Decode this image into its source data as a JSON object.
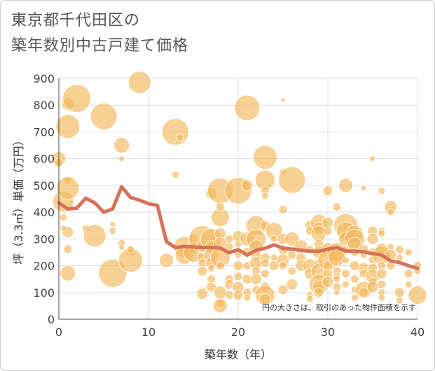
{
  "page": {
    "title_line1": "東京都千代田区の",
    "title_line2": "築年数別中古戸建て価格"
  },
  "chart_data": {
    "type": "scatter",
    "title": "東京都千代田区の築年数別中古戸建て価格",
    "xlabel": "築年数（年）",
    "ylabel": "坪（3.3㎡）単価（万円）",
    "xlim": [
      0,
      40
    ],
    "ylim": [
      0,
      900
    ],
    "xticks": [
      0,
      10,
      20,
      30,
      40
    ],
    "yticks": [
      0,
      100,
      200,
      300,
      400,
      500,
      600,
      700,
      800,
      900
    ],
    "grid": true,
    "note": "円の大きさは、取引のあった物件面積を示す",
    "colors": {
      "bubble": "#f3b95a",
      "bubble_opacity": 0.65,
      "line": "#d5735a",
      "grid": "#d8dde6",
      "axis": "#444444"
    },
    "series": [
      {
        "type": "line",
        "x": [
          0,
          1,
          2,
          3,
          4,
          5,
          6,
          7,
          8,
          9,
          10,
          11,
          12,
          13,
          14,
          15,
          16,
          17,
          18,
          19,
          20,
          21,
          22,
          23,
          24,
          25,
          26,
          27,
          28,
          29,
          30,
          31,
          32,
          33,
          34,
          35,
          36,
          37,
          38,
          39,
          40
        ],
        "y": [
          435,
          412,
          415,
          452,
          435,
          400,
          412,
          495,
          455,
          445,
          432,
          425,
          290,
          268,
          272,
          270,
          268,
          268,
          266,
          248,
          260,
          240,
          258,
          265,
          278,
          265,
          262,
          258,
          254,
          254,
          262,
          268,
          255,
          254,
          252,
          245,
          240,
          218,
          212,
          200,
          190
        ]
      },
      {
        "type": "bubble",
        "points": [
          [
            0,
            600,
            20
          ],
          [
            0,
            585,
            12
          ],
          [
            0.5,
            440,
            30
          ],
          [
            1,
            720,
            34
          ],
          [
            1,
            805,
            18
          ],
          [
            1,
            520,
            12
          ],
          [
            1,
            490,
            32
          ],
          [
            1,
            325,
            16
          ],
          [
            1,
            262,
            12
          ],
          [
            1,
            172,
            22
          ],
          [
            0.5,
            380,
            10
          ],
          [
            0.5,
            340,
            9
          ],
          [
            2,
            825,
            40
          ],
          [
            3,
            340,
            10
          ],
          [
            4,
            312,
            32
          ],
          [
            5,
            758,
            38
          ],
          [
            6,
            355,
            8
          ],
          [
            6,
            330,
            10
          ],
          [
            6,
            172,
            40
          ],
          [
            7,
            650,
            22
          ],
          [
            7,
            600,
            8
          ],
          [
            7,
            285,
            10
          ],
          [
            7,
            268,
            8
          ],
          [
            8,
            255,
            14
          ],
          [
            8,
            220,
            34
          ],
          [
            8,
            260,
            10
          ],
          [
            9,
            885,
            32
          ],
          [
            12,
            220,
            20
          ],
          [
            12,
            300,
            8
          ],
          [
            13,
            700,
            38
          ],
          [
            13,
            540,
            10
          ],
          [
            13.5,
            680,
            10
          ],
          [
            14,
            270,
            30
          ],
          [
            14,
            240,
            26
          ],
          [
            15,
            300,
            14
          ],
          [
            15,
            260,
            12
          ],
          [
            15,
            250,
            28
          ],
          [
            16,
            300,
            38
          ],
          [
            16,
            275,
            16
          ],
          [
            16,
            230,
            14
          ],
          [
            16,
            210,
            12
          ],
          [
            16,
            180,
            14
          ],
          [
            16,
            95,
            16
          ],
          [
            17,
            300,
            30
          ],
          [
            17,
            270,
            18
          ],
          [
            17,
            240,
            20
          ],
          [
            17,
            210,
            16
          ],
          [
            17,
            150,
            12
          ],
          [
            17,
            120,
            14
          ],
          [
            17,
            470,
            16
          ],
          [
            17,
            190,
            10
          ],
          [
            18,
            480,
            36
          ],
          [
            18,
            380,
            26
          ],
          [
            18,
            420,
            12
          ],
          [
            18,
            320,
            16
          ],
          [
            18,
            280,
            20
          ],
          [
            18,
            230,
            28
          ],
          [
            18,
            200,
            12
          ],
          [
            18,
            100,
            18
          ],
          [
            18,
            60,
            12
          ],
          [
            18,
            50,
            20
          ],
          [
            19,
            150,
            12
          ],
          [
            19,
            130,
            14
          ],
          [
            19,
            90,
            12
          ],
          [
            19,
            270,
            12
          ],
          [
            19,
            300,
            12
          ],
          [
            20,
            480,
            38
          ],
          [
            20,
            310,
            16
          ],
          [
            20,
            280,
            10
          ],
          [
            20,
            240,
            10
          ],
          [
            20,
            200,
            14
          ],
          [
            20,
            160,
            12
          ],
          [
            20,
            120,
            16
          ],
          [
            20,
            90,
            14
          ],
          [
            21,
            790,
            36
          ],
          [
            21,
            500,
            16
          ],
          [
            21,
            300,
            20
          ],
          [
            21,
            250,
            14
          ],
          [
            21,
            200,
            12
          ],
          [
            21,
            150,
            14
          ],
          [
            21,
            100,
            12
          ],
          [
            21,
            80,
            10
          ],
          [
            22,
            350,
            28
          ],
          [
            22,
            300,
            28
          ],
          [
            22,
            270,
            20
          ],
          [
            22,
            240,
            14
          ],
          [
            22,
            210,
            18
          ],
          [
            22,
            180,
            12
          ],
          [
            22,
            150,
            16
          ],
          [
            22,
            110,
            12
          ],
          [
            23,
            605,
            34
          ],
          [
            23,
            520,
            28
          ],
          [
            23,
            480,
            12
          ],
          [
            23,
            460,
            10
          ],
          [
            23,
            350,
            14
          ],
          [
            23,
            230,
            14
          ],
          [
            23,
            210,
            12
          ],
          [
            23,
            170,
            12
          ],
          [
            23,
            120,
            14
          ],
          [
            23,
            90,
            28
          ],
          [
            23,
            75,
            16
          ],
          [
            24,
            330,
            24
          ],
          [
            24,
            300,
            10
          ],
          [
            24,
            230,
            10
          ],
          [
            24,
            200,
            14
          ],
          [
            25,
            820,
            6
          ],
          [
            25,
            550,
            10
          ],
          [
            25,
            410,
            12
          ],
          [
            25,
            300,
            16
          ],
          [
            25,
            260,
            14
          ],
          [
            25,
            220,
            18
          ],
          [
            25,
            200,
            12
          ],
          [
            25,
            110,
            14
          ],
          [
            26,
            520,
            38
          ],
          [
            26,
            300,
            20
          ],
          [
            26,
            240,
            12
          ],
          [
            26,
            180,
            12
          ],
          [
            26,
            130,
            16
          ],
          [
            27,
            270,
            20
          ],
          [
            27,
            230,
            14
          ],
          [
            27,
            200,
            16
          ],
          [
            28,
            350,
            14
          ],
          [
            28,
            330,
            12
          ],
          [
            28,
            260,
            12
          ],
          [
            28,
            200,
            20
          ],
          [
            28,
            170,
            16
          ],
          [
            28,
            90,
            10
          ],
          [
            28,
            75,
            10
          ],
          [
            29,
            360,
            24
          ],
          [
            29,
            340,
            18
          ],
          [
            29,
            320,
            22
          ],
          [
            29,
            280,
            14
          ],
          [
            29,
            250,
            18
          ],
          [
            29,
            210,
            12
          ],
          [
            29,
            180,
            22
          ],
          [
            29,
            130,
            28
          ],
          [
            29,
            120,
            18
          ],
          [
            29,
            100,
            14
          ],
          [
            30,
            480,
            14
          ],
          [
            30,
            360,
            16
          ],
          [
            30,
            330,
            12
          ],
          [
            30,
            260,
            20
          ],
          [
            30,
            220,
            28
          ],
          [
            30,
            200,
            14
          ],
          [
            30,
            170,
            14
          ],
          [
            30,
            140,
            16
          ],
          [
            31,
            420,
            12
          ],
          [
            31,
            250,
            28
          ],
          [
            31,
            230,
            24
          ],
          [
            31,
            180,
            12
          ],
          [
            31,
            160,
            10
          ],
          [
            31,
            150,
            10
          ],
          [
            31,
            120,
            12
          ],
          [
            31,
            100,
            8
          ],
          [
            32,
            500,
            20
          ],
          [
            32,
            350,
            34
          ],
          [
            32,
            330,
            26
          ],
          [
            32,
            300,
            20
          ],
          [
            32,
            260,
            12
          ],
          [
            32,
            220,
            10
          ],
          [
            32,
            170,
            12
          ],
          [
            32,
            130,
            10
          ],
          [
            33,
            320,
            24
          ],
          [
            33,
            300,
            28
          ],
          [
            33,
            280,
            20
          ],
          [
            33,
            250,
            12
          ],
          [
            33,
            200,
            14
          ],
          [
            33,
            150,
            12
          ],
          [
            33,
            110,
            10
          ],
          [
            33,
            80,
            10
          ],
          [
            34,
            490,
            8
          ],
          [
            34,
            260,
            14
          ],
          [
            34,
            240,
            10
          ],
          [
            34,
            190,
            16
          ],
          [
            34,
            170,
            12
          ],
          [
            34,
            110,
            24
          ],
          [
            34,
            100,
            14
          ],
          [
            35,
            600,
            8
          ],
          [
            35,
            330,
            14
          ],
          [
            35,
            300,
            16
          ],
          [
            35,
            250,
            12
          ],
          [
            35,
            220,
            12
          ],
          [
            35,
            190,
            14
          ],
          [
            35,
            160,
            20
          ],
          [
            35,
            140,
            12
          ],
          [
            35,
            120,
            16
          ],
          [
            36,
            480,
            10
          ],
          [
            36,
            330,
            10
          ],
          [
            36,
            320,
            10
          ],
          [
            36,
            260,
            18
          ],
          [
            36,
            240,
            26
          ],
          [
            36,
            200,
            12
          ],
          [
            36,
            170,
            14
          ],
          [
            36,
            130,
            12
          ],
          [
            36,
            100,
            10
          ],
          [
            36,
            80,
            10
          ],
          [
            37,
            420,
            18
          ],
          [
            37,
            400,
            10
          ],
          [
            37,
            270,
            10
          ],
          [
            37,
            240,
            16
          ],
          [
            37,
            200,
            12
          ],
          [
            38,
            260,
            12
          ],
          [
            38,
            230,
            10
          ],
          [
            38,
            100,
            14
          ],
          [
            38,
            70,
            10
          ],
          [
            39,
            250,
            10
          ],
          [
            39,
            170,
            12
          ],
          [
            39,
            130,
            10
          ],
          [
            40,
            90,
            26
          ],
          [
            40,
            200,
            12
          ],
          [
            40,
            180,
            10
          ]
        ]
      }
    ]
  }
}
